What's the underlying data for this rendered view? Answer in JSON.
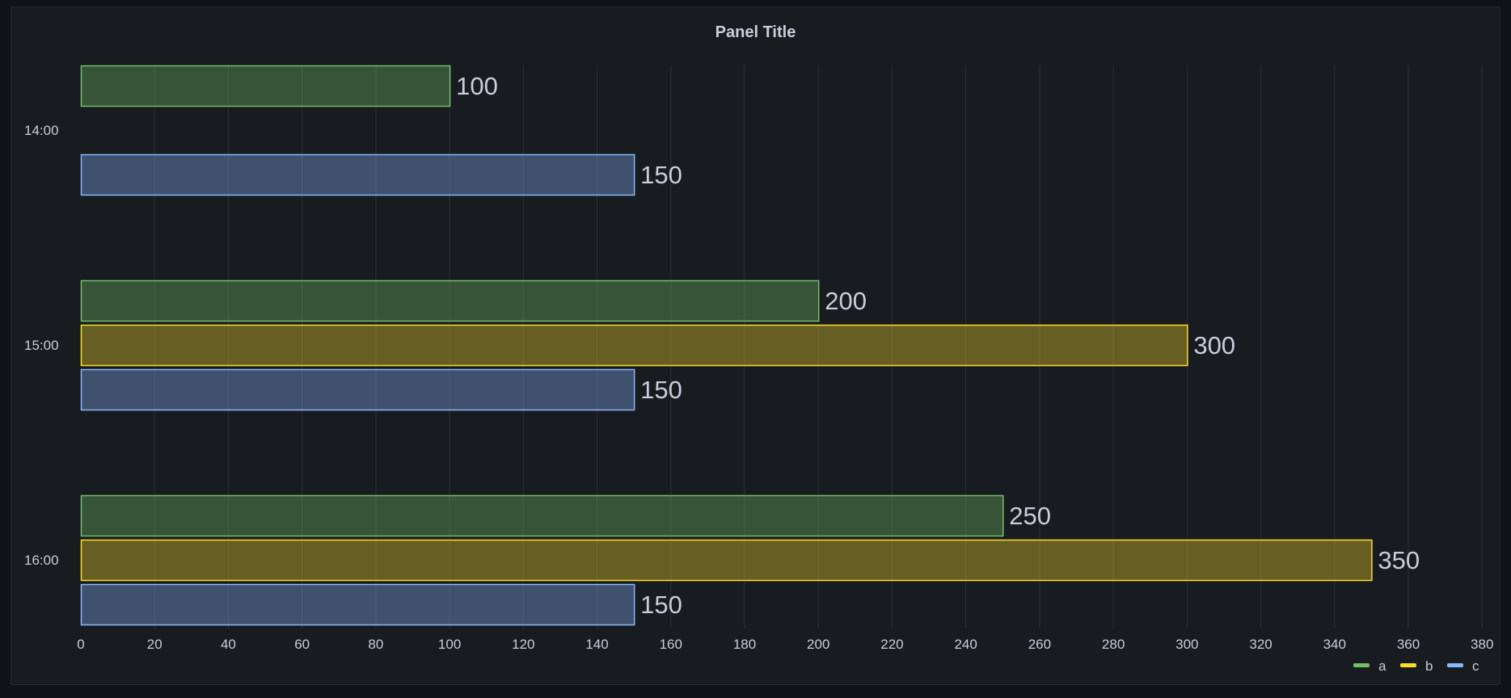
{
  "panel": {
    "title": "Panel Title"
  },
  "chart_data": {
    "type": "bar",
    "orientation": "horizontal",
    "categories": [
      "14:00",
      "15:00",
      "16:00"
    ],
    "series": [
      {
        "name": "a",
        "color": "#73bf69",
        "values": [
          100,
          200,
          250
        ]
      },
      {
        "name": "b",
        "color": "#fade2a",
        "values": [
          null,
          300,
          350
        ]
      },
      {
        "name": "c",
        "color": "#8ab8ff",
        "values": [
          150,
          150,
          150
        ]
      }
    ],
    "xlim": [
      0,
      380
    ],
    "x_ticks": [
      0,
      20,
      40,
      60,
      80,
      100,
      120,
      140,
      160,
      180,
      200,
      220,
      240,
      260,
      280,
      300,
      320,
      340,
      360,
      380
    ],
    "grid": true,
    "legend_position": "bottom-right",
    "data_labels": true
  }
}
